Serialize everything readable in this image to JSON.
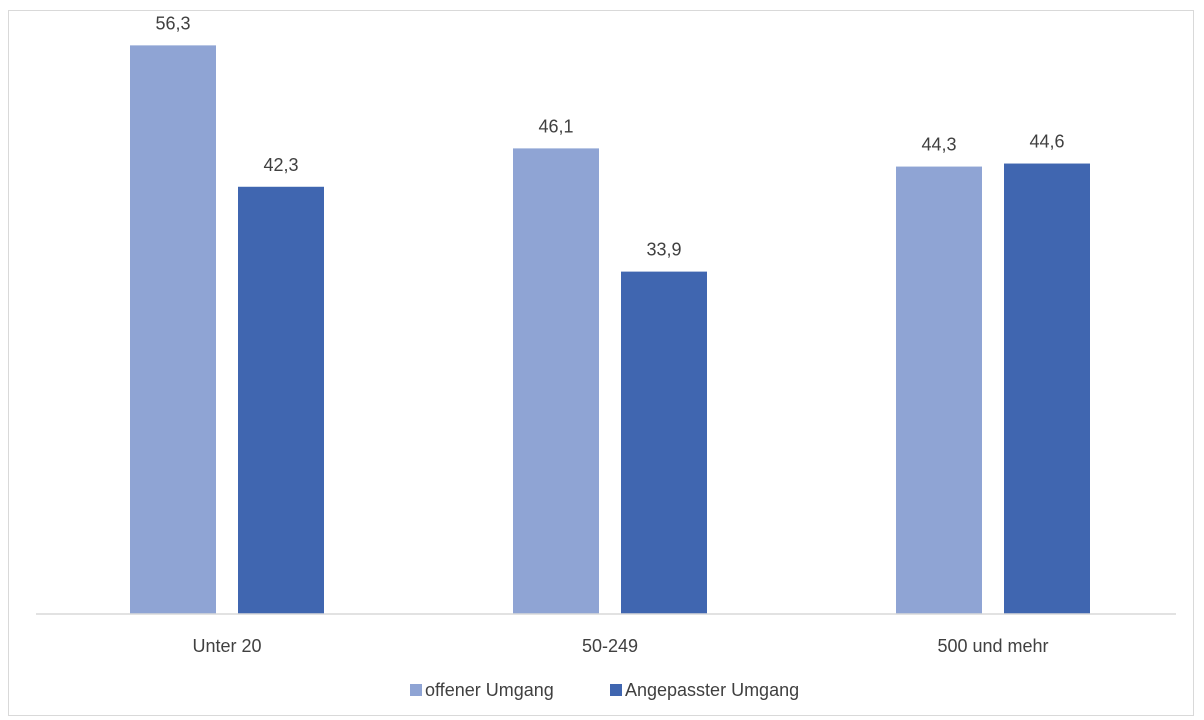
{
  "chart_data": {
    "type": "bar",
    "title": "",
    "xlabel": "",
    "ylabel": "",
    "categories": [
      "Unter 20",
      "50-249",
      "500 und mehr"
    ],
    "series": [
      {
        "name": "offener Umgang",
        "color": "#8FA4D4",
        "values": [
          56.3,
          46.1,
          44.3
        ],
        "labels": [
          "56,3",
          "46,1",
          "44,3"
        ]
      },
      {
        "name": "Angepasster Umgang",
        "color": "#4066B0",
        "values": [
          42.3,
          33.9,
          44.6
        ],
        "labels": [
          "42,3",
          "33,9",
          "44,6"
        ]
      }
    ],
    "ylim": [
      0,
      60
    ],
    "grid": false,
    "legend_position": "bottom"
  }
}
